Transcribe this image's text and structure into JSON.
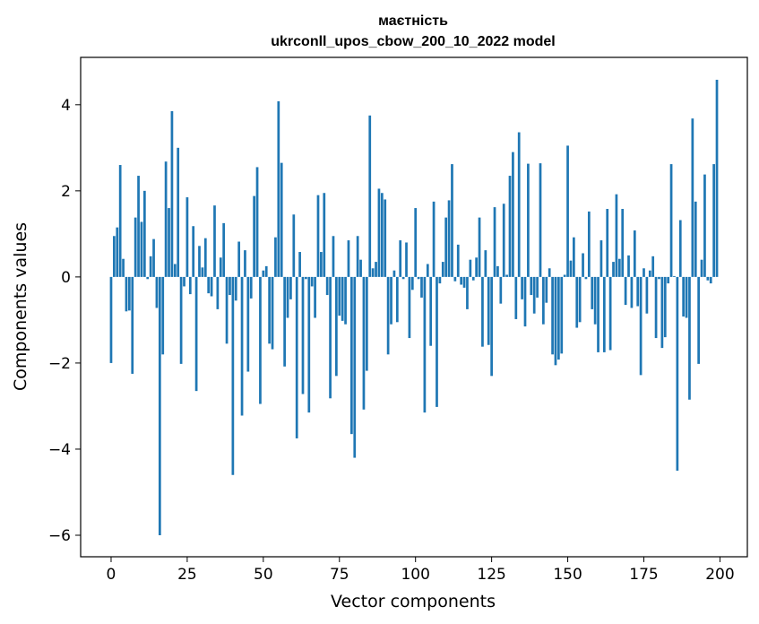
{
  "chart_data": {
    "type": "bar",
    "title_line1": "маєтність",
    "title_line2": "ukrconll_upos_cbow_200_10_2022 model",
    "xlabel": "Vector components",
    "ylabel": "Components values",
    "xlim": [
      -10,
      209
    ],
    "ylim": [
      -6.5,
      5.1
    ],
    "x_ticks": [
      0,
      25,
      50,
      75,
      100,
      125,
      150,
      175,
      200
    ],
    "y_ticks": [
      -6,
      -4,
      -2,
      0,
      2,
      4
    ],
    "x_tick_labels": [
      "0",
      "25",
      "50",
      "75",
      "100",
      "125",
      "150",
      "175",
      "200"
    ],
    "y_tick_labels": [
      "−6",
      "−4",
      "−2",
      "0",
      "2",
      "4"
    ],
    "bar_color": "#1f77b4",
    "grid": false,
    "values": [
      -2.0,
      0.95,
      1.15,
      2.6,
      0.42,
      -0.8,
      -0.78,
      -2.25,
      1.38,
      2.35,
      1.28,
      2.0,
      -0.05,
      0.48,
      0.88,
      -0.72,
      -6.0,
      -1.8,
      2.68,
      1.6,
      3.85,
      0.3,
      3.0,
      -2.02,
      -0.22,
      1.85,
      -0.4,
      1.18,
      -2.65,
      0.72,
      0.22,
      0.9,
      -0.38,
      -0.45,
      1.66,
      -0.75,
      0.45,
      1.25,
      -1.55,
      -0.42,
      -4.6,
      -0.55,
      0.82,
      -3.22,
      0.62,
      -2.2,
      -0.5,
      1.88,
      2.55,
      -2.95,
      0.15,
      0.25,
      -1.55,
      -1.68,
      0.92,
      4.08,
      2.65,
      -2.08,
      -0.95,
      -0.52,
      1.45,
      -3.75,
      0.58,
      -2.72,
      -0.05,
      -3.15,
      -0.22,
      -0.95,
      1.9,
      0.58,
      1.95,
      -0.42,
      -2.82,
      0.95,
      -2.3,
      -0.9,
      -1.02,
      -1.1,
      0.85,
      -3.65,
      -4.2,
      0.95,
      0.4,
      -3.08,
      -2.18,
      3.75,
      0.2,
      0.35,
      2.05,
      1.95,
      1.8,
      -1.8,
      -1.1,
      0.15,
      -1.05,
      0.85,
      -0.05,
      0.8,
      -1.42,
      -0.3,
      1.6,
      -0.05,
      -0.48,
      -3.15,
      0.3,
      -1.6,
      1.75,
      -3.02,
      -0.15,
      0.35,
      1.38,
      1.78,
      2.62,
      -0.1,
      0.75,
      -0.18,
      -0.25,
      -0.75,
      0.4,
      -0.08,
      0.45,
      1.38,
      -1.62,
      0.62,
      -1.58,
      -2.3,
      1.62,
      0.25,
      -0.62,
      1.7,
      0.05,
      2.35,
      2.9,
      -0.98,
      3.36,
      -0.52,
      -1.15,
      2.63,
      -0.42,
      -0.85,
      -0.48,
      2.64,
      -1.1,
      -0.6,
      0.2,
      -1.8,
      -2.05,
      -1.92,
      -1.78,
      0.05,
      3.05,
      0.38,
      0.92,
      -1.18,
      -1.05,
      0.55,
      -0.05,
      1.52,
      -0.75,
      -1.1,
      -1.75,
      0.85,
      -1.75,
      1.58,
      -1.7,
      0.35,
      1.92,
      0.42,
      1.58,
      -0.65,
      0.5,
      -0.72,
      1.08,
      -0.68,
      -2.28,
      0.2,
      -0.85,
      0.15,
      0.48,
      -1.42,
      -0.05,
      -1.65,
      -1.4,
      -0.15,
      2.62,
      0.02,
      -4.5,
      1.32,
      -0.92,
      -0.95,
      -2.85,
      3.68,
      1.75,
      -2.02,
      0.4,
      2.38,
      -0.08,
      -0.15,
      2.62,
      4.58
    ]
  }
}
